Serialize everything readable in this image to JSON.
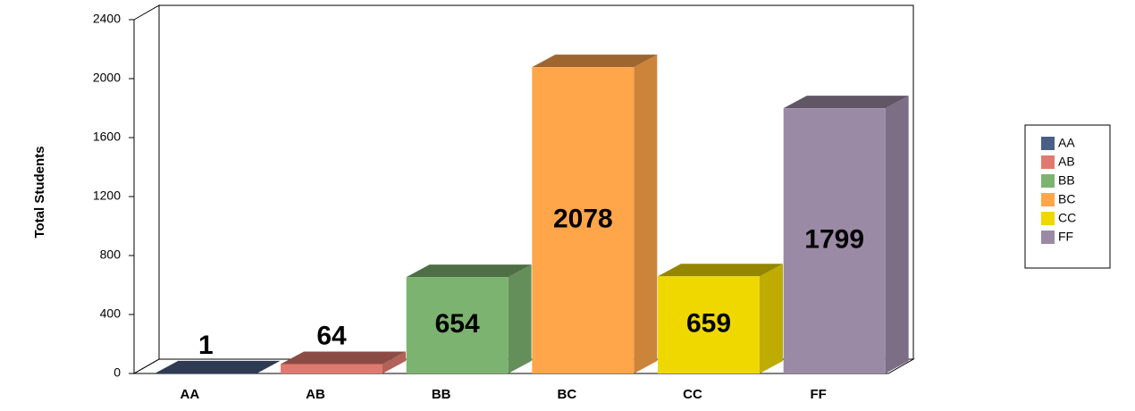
{
  "chart_data": {
    "type": "bar3d",
    "y_label": "Total Students",
    "categories": [
      "AA",
      "AB",
      "BB",
      "BC",
      "CC",
      "FF"
    ],
    "values": [
      1,
      64,
      654,
      2078,
      659,
      1799
    ],
    "colors": [
      "#4a5f85",
      "#e07a70",
      "#7db370",
      "#ffa54a",
      "#eed800",
      "#9b8aa5"
    ],
    "ylim": [
      0,
      2400
    ],
    "yticks": [
      0,
      400,
      800,
      1200,
      1600,
      2000,
      2400
    ],
    "legend": "right"
  }
}
